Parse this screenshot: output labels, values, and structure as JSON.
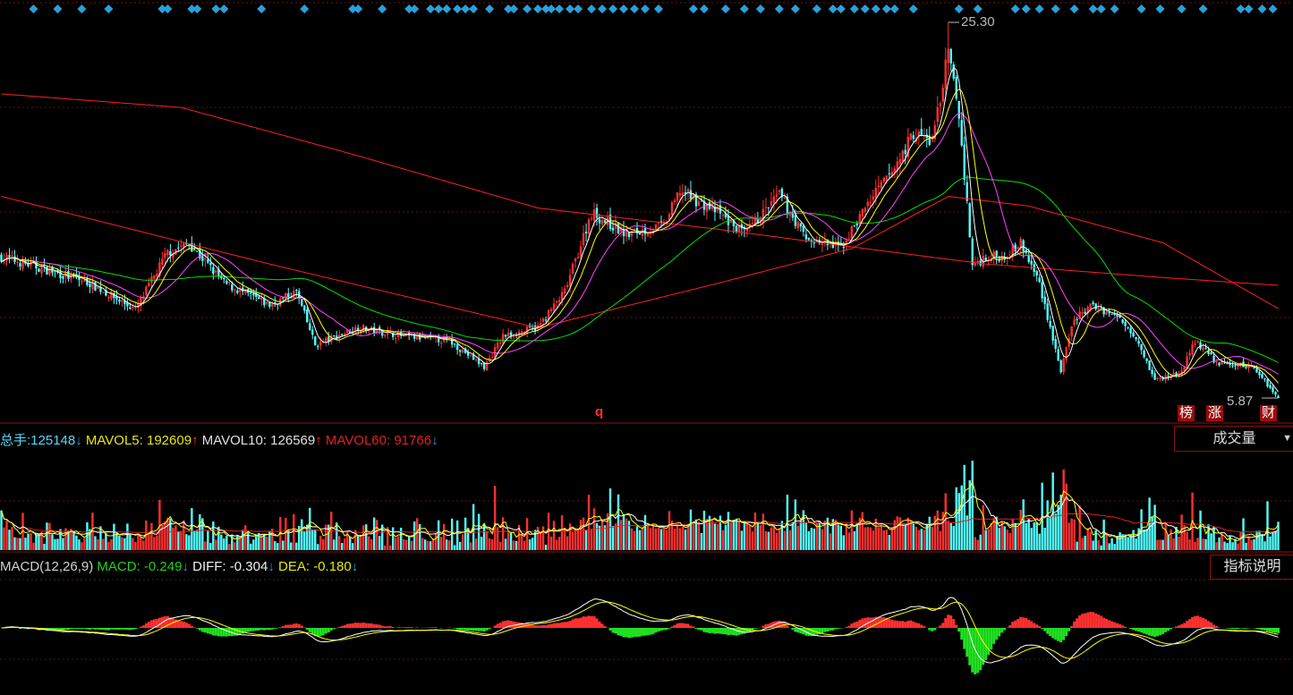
{
  "chart_data": {
    "type": "candlestick",
    "price_high_label": "25.30",
    "price_low_label": "5.87",
    "price_range": [
      5.87,
      25.3
    ],
    "total_bars": 477,
    "close_keypoints": {
      "bar": [
        0,
        17,
        33,
        50,
        62,
        70,
        83,
        100,
        110,
        117,
        133,
        150,
        167,
        180,
        187,
        200,
        210,
        220,
        233,
        247,
        253,
        267,
        277,
        290,
        300,
        313,
        323,
        333,
        340,
        347,
        353,
        357,
        362,
        367,
        373,
        380,
        387,
        395,
        400,
        407,
        417,
        423,
        430,
        440,
        445,
        453,
        467,
        476
      ],
      "price": [
        13.18,
        12.5,
        11.81,
        10.44,
        13.41,
        13.87,
        11.81,
        10.67,
        11.36,
        8.61,
        9.53,
        9.07,
        8.84,
        7.47,
        9.07,
        9.53,
        11.36,
        15.47,
        14.33,
        14.78,
        16.61,
        15.47,
        14.33,
        16.38,
        14.1,
        13.64,
        15.93,
        17.76,
        19.58,
        19.13,
        23.7,
        20.5,
        12.73,
        13.18,
        13.18,
        13.87,
        11.81,
        7.24,
        9.98,
        10.67,
        9.98,
        9.07,
        6.78,
        7.24,
        8.84,
        7.7,
        7.47,
        5.87
      ]
    },
    "ma_long_keypoints": {
      "bar": [
        0,
        67,
        133,
        200,
        267,
        333,
        367,
        433,
        476
      ],
      "price": [
        21.6,
        20.9,
        18.4,
        15.7,
        14.6,
        13.4,
        12.8,
        12.1,
        11.7
      ]
    },
    "ma_mid_keypoints": {
      "bar": [
        0,
        100,
        200,
        267,
        317,
        353,
        383,
        433,
        476
      ],
      "price": [
        16.3,
        12.8,
        9.5,
        11.8,
        13.6,
        16.3,
        15.8,
        13.9,
        10.5
      ]
    },
    "ma_short_periods": [
      5,
      10,
      20,
      60
    ],
    "series_colors": {
      "candle_up": "#ff3030",
      "candle_down": "#54ffff",
      "ma5": "#ffffff",
      "ma10": "#ffff00",
      "ma20": "#ff44ff",
      "ma60": "#00e000",
      "ma_mid": "#ff2020",
      "ma_long": "#ff2020"
    },
    "signal_marker_bars": [
      12,
      21,
      30,
      40,
      60,
      62,
      71,
      73,
      80,
      83,
      97,
      113,
      131,
      133,
      142,
      152,
      154,
      160,
      163,
      166,
      170,
      173,
      176,
      182,
      189,
      191,
      196,
      200,
      203,
      205,
      208,
      212,
      215,
      220,
      224,
      228,
      232,
      236,
      240,
      245,
      258,
      262,
      270,
      277,
      283,
      290,
      296,
      304,
      310,
      313,
      318,
      322,
      326,
      330,
      333,
      340,
      357,
      364,
      378,
      382,
      387,
      393,
      400,
      407,
      410,
      415,
      425,
      432,
      440,
      448,
      462,
      465,
      470,
      474
    ],
    "marker_color": "#2aa0d8"
  },
  "volume_panel": {
    "total_label": "总手:",
    "total_value": "125148",
    "total_arrow": "↓",
    "mavol5_label": "MAVOL5:",
    "mavol5_value": "192609",
    "mavol5_arrow": "↑",
    "mavol10_label": "MAVOL10:",
    "mavol10_value": "126569",
    "mavol10_arrow": "↑",
    "mavol60_label": "MAVOL60:",
    "mavol60_value": "91766",
    "mavol60_arrow": "↓",
    "selector_label": "成交量",
    "selector_arrow": "▼"
  },
  "macd_panel": {
    "title": "MACD(12,26,9)",
    "macd_label": "MACD:",
    "macd_value": "-0.249",
    "macd_arrow": "↓",
    "diff_label": "DIFF:",
    "diff_value": "-0.304",
    "diff_arrow": "↓",
    "dea_label": "DEA:",
    "dea_value": "-0.180",
    "dea_arrow": "↓",
    "help_button": "指标说明"
  },
  "main_panel": {
    "marker_q": "q",
    "tag_bang": "榜",
    "tag_zhang": "涨",
    "tag_cai": "财"
  }
}
